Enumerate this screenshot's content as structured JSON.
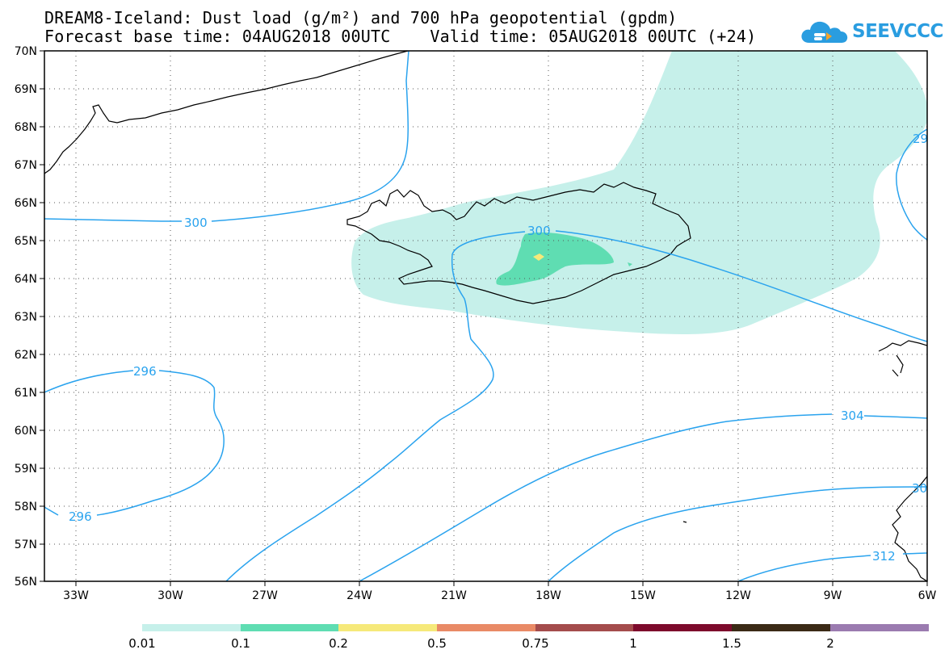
{
  "title_line1": "DREAM8-Iceland: Dust load (g/m²) and 700 hPa geopotential (gpdm)",
  "title_line2": "Forecast base time: 04AUG2018 00UTC    Valid time: 05AUG2018 00UTC (+24)",
  "logo_text": "SEEVCCC",
  "logo_icon": "cloud-icon",
  "map": {
    "lon_range": [
      -34.5,
      -6
    ],
    "lat_range": [
      56,
      70
    ],
    "lon_labels": [
      "33W",
      "30W",
      "27W",
      "24W",
      "21W",
      "18W",
      "15W",
      "12W",
      "9W",
      "6W"
    ],
    "lat_labels": [
      "56N",
      "57N",
      "58N",
      "59N",
      "60N",
      "61N",
      "62N",
      "63N",
      "64N",
      "65N",
      "66N",
      "67N",
      "68N",
      "69N",
      "70N"
    ],
    "gridlines": "dotted"
  },
  "contour_labels": [
    "300",
    "300",
    "296",
    "296",
    "304",
    "312",
    "29",
    "30"
  ],
  "legend": {
    "labels": [
      "0.01",
      "0.1",
      "0.2",
      "0.5",
      "0.75",
      "1",
      "1.5",
      "2"
    ],
    "colors": [
      "#c6f0ea",
      "#5fddb2",
      "#f6e97a",
      "#e98a66",
      "#a44c4c",
      "#7d0a2c",
      "#3b2a16",
      "#9b7bb0"
    ]
  },
  "colors": {
    "contour": "#2aa3ee",
    "dust_low": "#c6f0ea",
    "dust_mid": "#5fddb2",
    "dust_high": "#f6e97a",
    "logo": "#2a9de0"
  }
}
